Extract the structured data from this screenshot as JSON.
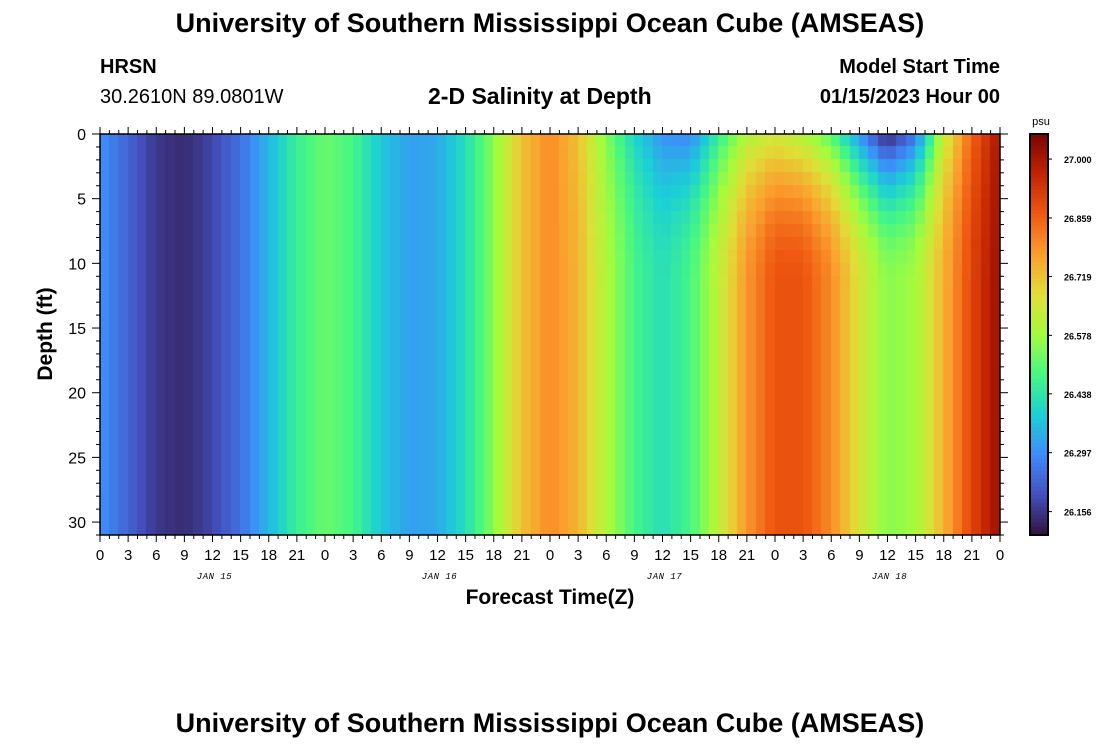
{
  "header": {
    "title": "University of Southern Mississippi Ocean Cube (AMSEAS)",
    "station": "HRSN",
    "coords": "30.2610N  89.0801W",
    "subtitle": "2-D Salinity at Depth",
    "model_start_label": "Model Start Time",
    "model_start_value": "01/15/2023 Hour 00"
  },
  "footer": {
    "title": "University of Southern Mississippi Ocean Cube (AMSEAS)"
  },
  "chart_data": {
    "type": "heatmap",
    "title": "2-D Salinity at Depth",
    "xlabel": "Forecast Time(Z)",
    "ylabel": "Depth (ft)",
    "x_range_hours": [
      0,
      96
    ],
    "x_tick_labels": [
      "0",
      "3",
      "6",
      "9",
      "12",
      "15",
      "18",
      "21",
      "0",
      "3",
      "6",
      "9",
      "12",
      "15",
      "18",
      "21",
      "0",
      "3",
      "6",
      "9",
      "12",
      "15",
      "18",
      "21",
      "0",
      "3",
      "6",
      "9",
      "12",
      "15",
      "18",
      "21",
      "0"
    ],
    "day_labels": [
      "JAN 15",
      "JAN 16",
      "JAN 17",
      "JAN 18"
    ],
    "ylim": [
      31,
      0
    ],
    "y_ticks": [
      0,
      5,
      10,
      15,
      20,
      25,
      30
    ],
    "colorbar": {
      "unit": "psu",
      "ticks": [
        "26.156",
        "26.297",
        "26.438",
        "26.578",
        "26.719",
        "26.859",
        "27.000"
      ],
      "range": [
        26.1,
        27.06
      ]
    },
    "time_profile_hours": [
      0,
      3,
      6,
      9,
      12,
      15,
      18,
      21,
      24,
      27,
      30,
      33,
      36,
      39,
      42,
      45,
      48,
      51,
      54,
      57,
      60,
      63,
      66,
      69,
      72,
      75,
      78,
      81,
      84,
      87,
      90,
      93,
      96
    ],
    "surface_salinity": [
      26.3,
      26.23,
      26.16,
      26.14,
      26.18,
      26.25,
      26.35,
      26.46,
      26.52,
      26.48,
      26.38,
      26.32,
      26.33,
      26.42,
      26.55,
      26.72,
      26.8,
      26.72,
      26.55,
      26.4,
      26.3,
      26.28,
      26.45,
      26.6,
      26.64,
      26.6,
      26.5,
      26.3,
      26.12,
      26.25,
      26.62,
      26.85,
      27.0
    ],
    "bottom_salinity": [
      26.3,
      26.23,
      26.16,
      26.14,
      26.18,
      26.25,
      26.35,
      26.46,
      26.52,
      26.48,
      26.38,
      26.32,
      26.33,
      26.42,
      26.55,
      26.72,
      26.8,
      26.74,
      26.6,
      26.48,
      26.42,
      26.48,
      26.62,
      26.78,
      26.88,
      26.88,
      26.8,
      26.66,
      26.55,
      26.58,
      26.74,
      26.9,
      27.02
    ]
  }
}
